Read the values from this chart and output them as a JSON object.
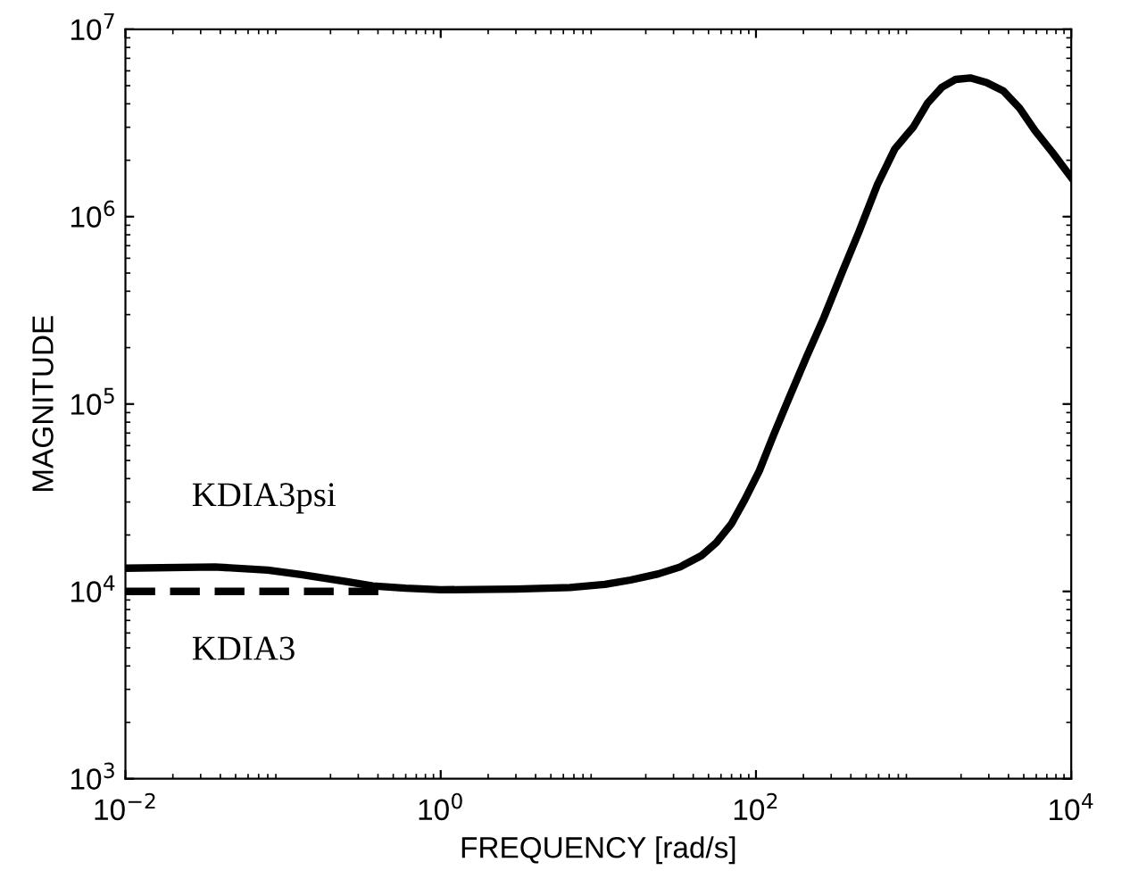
{
  "chart_data": {
    "type": "line",
    "xlabel": "FREQUENCY [rad/s]",
    "ylabel": "MAGNITUDE",
    "log": "xy",
    "grid": false,
    "xlim": [
      0.01,
      10000
    ],
    "ylim": [
      1000,
      10000000
    ],
    "xticks": [
      {
        "value": 0.01,
        "label": "10$^{−2}$"
      },
      {
        "value": 1,
        "label": "10$^{0}$"
      },
      {
        "value": 100,
        "label": "10$^{2}$"
      },
      {
        "value": 10000,
        "label": "10$^{4}$"
      }
    ],
    "yticks": [
      {
        "value": 1000,
        "label": "10$^{3}$"
      },
      {
        "value": 10000,
        "label": "10$^{4}$"
      },
      {
        "value": 100000,
        "label": "10$^{5}$"
      },
      {
        "value": 1000000,
        "label": "10$^{6}$"
      },
      {
        "value": 10000000,
        "label": "10$^{7}$"
      }
    ],
    "legend": false,
    "annotations": [
      "KDIA3psi",
      "KDIA3"
    ],
    "series": [
      {
        "color": "#000000",
        "line_style": "solid",
        "x": [
          0.01,
          0.037,
          0.08,
          0.13,
          0.25,
          0.37,
          0.6,
          1,
          3,
          6.6,
          11,
          16,
          24,
          33,
          45,
          56,
          70,
          85,
          105,
          129,
          160,
          209,
          270,
          355,
          450,
          589,
          760,
          1000,
          1230,
          1510,
          1850,
          2290,
          2900,
          3720,
          4700,
          5890,
          7600,
          10000
        ],
        "values": [
          13300,
          13500,
          13000,
          12300,
          11300,
          10700,
          10400,
          10200,
          10300,
          10500,
          10900,
          11500,
          12400,
          13500,
          15500,
          18200,
          23000,
          30900,
          44000,
          68000,
          105000,
          178000,
          290000,
          513000,
          830000,
          1480000,
          2300000,
          3020000,
          4050000,
          4900000,
          5400000,
          5500000,
          5200000,
          4680000,
          3800000,
          2880000,
          2200000,
          1620000
        ]
      },
      {
        "color": "#000000",
        "line_style": "dashed",
        "x": [
          0.01,
          0.1,
          0.5
        ],
        "values": [
          10000,
          10000,
          10000
        ]
      }
    ]
  }
}
